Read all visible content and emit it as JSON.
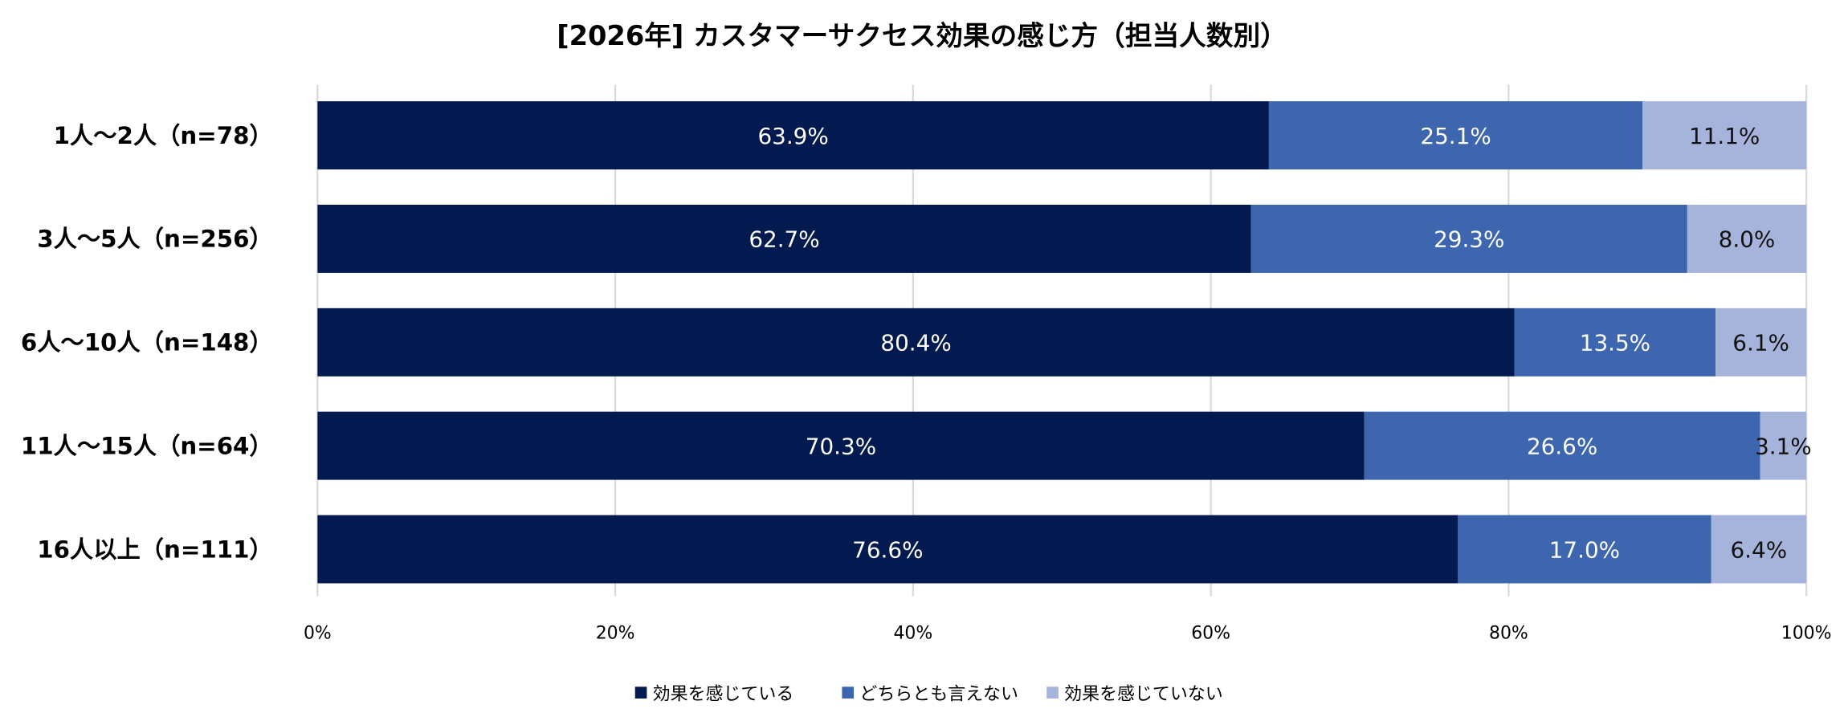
{
  "chart_data": {
    "type": "bar",
    "orientation": "horizontal",
    "stacked": true,
    "title": "[2026年] カスタマーサクセス効果の感じ方（担当人数別）",
    "categories": [
      "1人〜2人（n=78）",
      "3人〜5人（n=256）",
      "6人〜10人（n=148）",
      "11人〜15人（n=64）",
      "16人以上（n=111）"
    ],
    "series": [
      {
        "name": "効果を感じている",
        "color": "#021a4f",
        "label_color": "#ffffff",
        "values": [
          63.9,
          62.7,
          80.4,
          70.3,
          76.6
        ]
      },
      {
        "name": "どちらとも言えない",
        "color": "#3d66ae",
        "label_color": "#ffffff",
        "values": [
          25.1,
          29.3,
          13.5,
          26.6,
          17.0
        ]
      },
      {
        "name": "効果を感じていない",
        "color": "#a6b4db",
        "label_color": "#111111",
        "values": [
          11.1,
          8.0,
          6.1,
          3.1,
          6.4
        ]
      }
    ],
    "xlim": [
      0,
      100
    ],
    "xticks": [
      "0%",
      "20%",
      "40%",
      "60%",
      "80%",
      "100%"
    ],
    "grid": true,
    "legend": "bottom"
  }
}
